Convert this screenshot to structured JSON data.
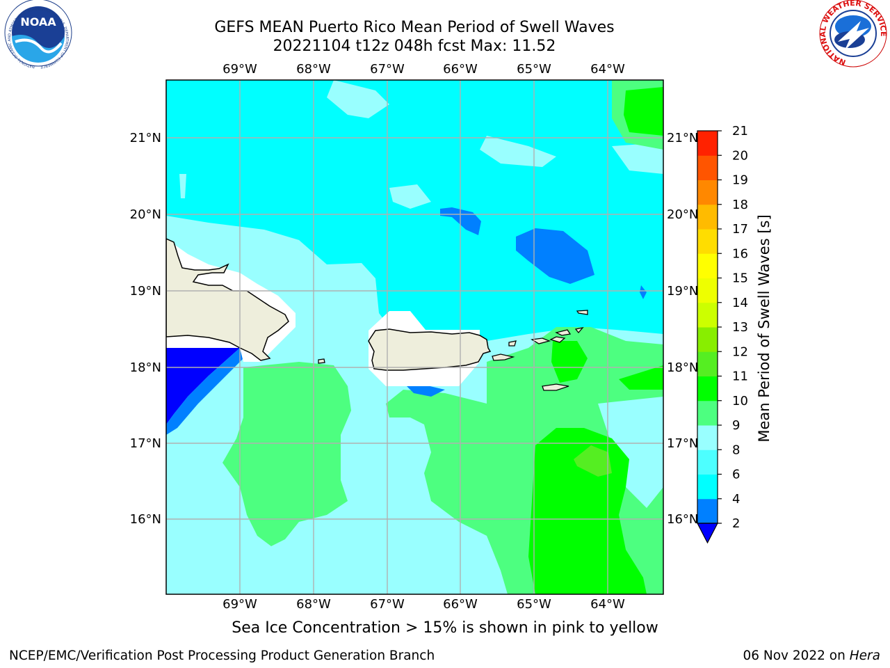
{
  "title": {
    "line1": "GEFS MEAN Puerto Rico Mean Period of Swell Waves",
    "line2": "20221104 t12z 048h fcst   Max: 11.52"
  },
  "map": {
    "lon_labels": [
      "69°W",
      "68°W",
      "67°W",
      "66°W",
      "65°W",
      "64°W"
    ],
    "lat_labels": [
      "21°N",
      "20°N",
      "19°N",
      "18°N",
      "17°N",
      "16°N"
    ],
    "land_color": "#eeeedc",
    "coast_color": "#000000",
    "grid_color": "#b0b0b0",
    "fill_regions": [
      {
        "name": "period-6-8",
        "color": "#00ffff"
      },
      {
        "name": "period-8-9",
        "color": "#99ffff"
      },
      {
        "name": "period-9-10",
        "color": "#4dff80"
      },
      {
        "name": "period-10-11",
        "color": "#00ff00"
      },
      {
        "name": "period-11-12",
        "color": "#55ee22"
      },
      {
        "name": "period-4-6",
        "color": "#0080ff"
      },
      {
        "name": "period-2-4",
        "color": "#0000ff"
      }
    ]
  },
  "colorbar": {
    "label": "Mean Period of Swell Waves [s]",
    "ticks": [
      "2",
      "4",
      "6",
      "8",
      "9",
      "10",
      "11",
      "12",
      "13",
      "14",
      "15",
      "16",
      "17",
      "18",
      "19",
      "20",
      "21"
    ],
    "colors": [
      "#0080ff",
      "#00ffff",
      "#4dffff",
      "#99ffff",
      "#4dff80",
      "#00ff00",
      "#55ee22",
      "#88ee00",
      "#ccff00",
      "#eeff00",
      "#ffff00",
      "#ffdd00",
      "#ffbb00",
      "#ff8800",
      "#ff5500",
      "#ff2200",
      "#ff0000"
    ],
    "under_color": "#0000ff"
  },
  "footer": {
    "note": "Sea Ice Concentration > 15% is shown in pink to yellow",
    "credit": "NCEP/EMC/Verification Post Processing Product Generation Branch",
    "date": "06 Nov 2022 on",
    "machine": "Hera"
  },
  "logos": {
    "left": "NOAA",
    "left_ring": "NATIONAL OCEANIC AND ATMOSPHERIC ADMINISTRATION · U.S. DEPARTMENT OF COMMERCE",
    "right_ring": "NATIONAL WEATHER SERVICE"
  }
}
